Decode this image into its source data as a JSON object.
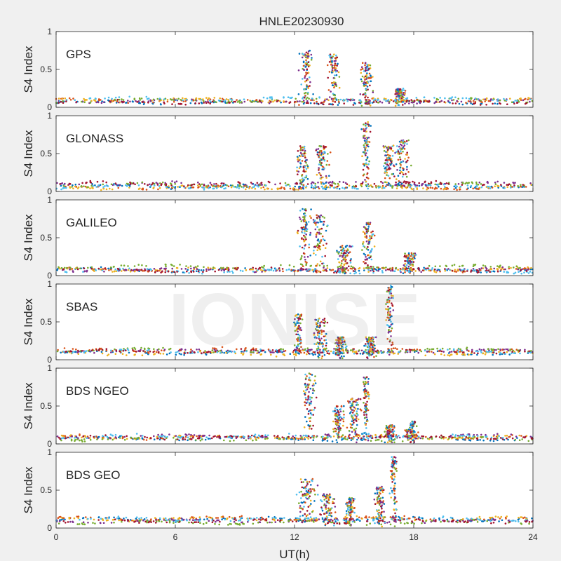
{
  "figure": {
    "title": "HNLE20230930",
    "xlabel": "UT(h)",
    "watermark": "IONISE"
  },
  "colors": {
    "background": "#f0f0f0",
    "axes_bg": "#ffffff",
    "axes_edge": "#262626",
    "series": [
      "#0072BD",
      "#D95319",
      "#EDB120",
      "#7E2F8E",
      "#77AC30",
      "#4DBEEE",
      "#A2142F"
    ]
  },
  "chart_data": [
    {
      "type": "scatter",
      "label": "GPS",
      "ylabel": "S4 Index",
      "xlim": [
        0,
        24
      ],
      "ylim": [
        0,
        1
      ],
      "xticks": [
        "0",
        "6",
        "12",
        "18",
        "24"
      ],
      "yticks": [
        "0",
        "0.5",
        "1"
      ],
      "baseline": 0.09,
      "activity": [
        {
          "t": 12.6,
          "w": 0.45,
          "peak": 0.75
        },
        {
          "t": 14.0,
          "w": 0.4,
          "peak": 0.7
        },
        {
          "t": 15.6,
          "w": 0.45,
          "peak": 0.6
        },
        {
          "t": 17.3,
          "w": 0.4,
          "peak": 0.25
        }
      ]
    },
    {
      "type": "scatter",
      "label": "GLONASS",
      "ylabel": "S4 Index",
      "xlim": [
        0,
        24
      ],
      "ylim": [
        0,
        1
      ],
      "xticks": [
        "0",
        "6",
        "12",
        "18",
        "24"
      ],
      "yticks": [
        "0",
        "0.5",
        "1"
      ],
      "baseline": 0.08,
      "activity": [
        {
          "t": 12.4,
          "w": 0.45,
          "peak": 0.6
        },
        {
          "t": 13.4,
          "w": 0.45,
          "peak": 0.6
        },
        {
          "t": 15.6,
          "w": 0.3,
          "peak": 0.92
        },
        {
          "t": 16.7,
          "w": 0.4,
          "peak": 0.6
        },
        {
          "t": 17.4,
          "w": 0.5,
          "peak": 0.68
        }
      ]
    },
    {
      "type": "scatter",
      "label": "GALILEO",
      "ylabel": "S4 Index",
      "xlim": [
        0,
        24
      ],
      "ylim": [
        0,
        1
      ],
      "xticks": [
        "0",
        "6",
        "12",
        "18",
        "24"
      ],
      "yticks": [
        "0",
        "0.5",
        "1"
      ],
      "baseline": 0.09,
      "activity": [
        {
          "t": 12.5,
          "w": 0.4,
          "peak": 0.88
        },
        {
          "t": 13.3,
          "w": 0.5,
          "peak": 0.8
        },
        {
          "t": 14.5,
          "w": 0.5,
          "peak": 0.4
        },
        {
          "t": 15.7,
          "w": 0.4,
          "peak": 0.7
        },
        {
          "t": 17.8,
          "w": 0.4,
          "peak": 0.3
        }
      ]
    },
    {
      "type": "scatter",
      "label": "SBAS",
      "ylabel": "S4 Index",
      "xlim": [
        0,
        24
      ],
      "ylim": [
        0,
        1
      ],
      "xticks": [
        "0",
        "6",
        "12",
        "18",
        "24"
      ],
      "yticks": [
        "0",
        "0.5",
        "1"
      ],
      "baseline": 0.1,
      "activity": [
        {
          "t": 12.2,
          "w": 0.3,
          "peak": 0.6
        },
        {
          "t": 13.3,
          "w": 0.5,
          "peak": 0.55
        },
        {
          "t": 14.3,
          "w": 0.4,
          "peak": 0.3
        },
        {
          "t": 15.8,
          "w": 0.4,
          "peak": 0.3
        },
        {
          "t": 16.8,
          "w": 0.25,
          "peak": 0.98
        }
      ]
    },
    {
      "type": "scatter",
      "label": "BDS NGEO",
      "ylabel": "S4 Index",
      "xlim": [
        0,
        24
      ],
      "ylim": [
        0,
        1
      ],
      "xticks": [
        "0",
        "6",
        "12",
        "18",
        "24"
      ],
      "yticks": [
        "0",
        "0.5",
        "1"
      ],
      "baseline": 0.07,
      "activity": [
        {
          "t": 12.7,
          "w": 0.5,
          "peak": 0.95
        },
        {
          "t": 14.2,
          "w": 0.4,
          "peak": 0.5
        },
        {
          "t": 15.0,
          "w": 0.45,
          "peak": 0.6
        },
        {
          "t": 15.6,
          "w": 0.2,
          "peak": 0.9
        },
        {
          "t": 16.8,
          "w": 0.35,
          "peak": 0.25
        },
        {
          "t": 17.9,
          "w": 0.4,
          "peak": 0.3
        }
      ]
    },
    {
      "type": "scatter",
      "label": "BDS GEO",
      "ylabel": "S4 Index",
      "xlim": [
        0,
        24
      ],
      "ylim": [
        0,
        1
      ],
      "xticks": [
        "0",
        "6",
        "12",
        "18",
        "24"
      ],
      "yticks": [
        "0",
        "0.5",
        "1"
      ],
      "baseline": 0.1,
      "activity": [
        {
          "t": 12.6,
          "w": 0.6,
          "peak": 0.65
        },
        {
          "t": 13.7,
          "w": 0.6,
          "peak": 0.45
        },
        {
          "t": 14.8,
          "w": 0.35,
          "peak": 0.4
        },
        {
          "t": 16.3,
          "w": 0.4,
          "peak": 0.55
        },
        {
          "t": 17.0,
          "w": 0.25,
          "peak": 0.95
        }
      ]
    }
  ]
}
